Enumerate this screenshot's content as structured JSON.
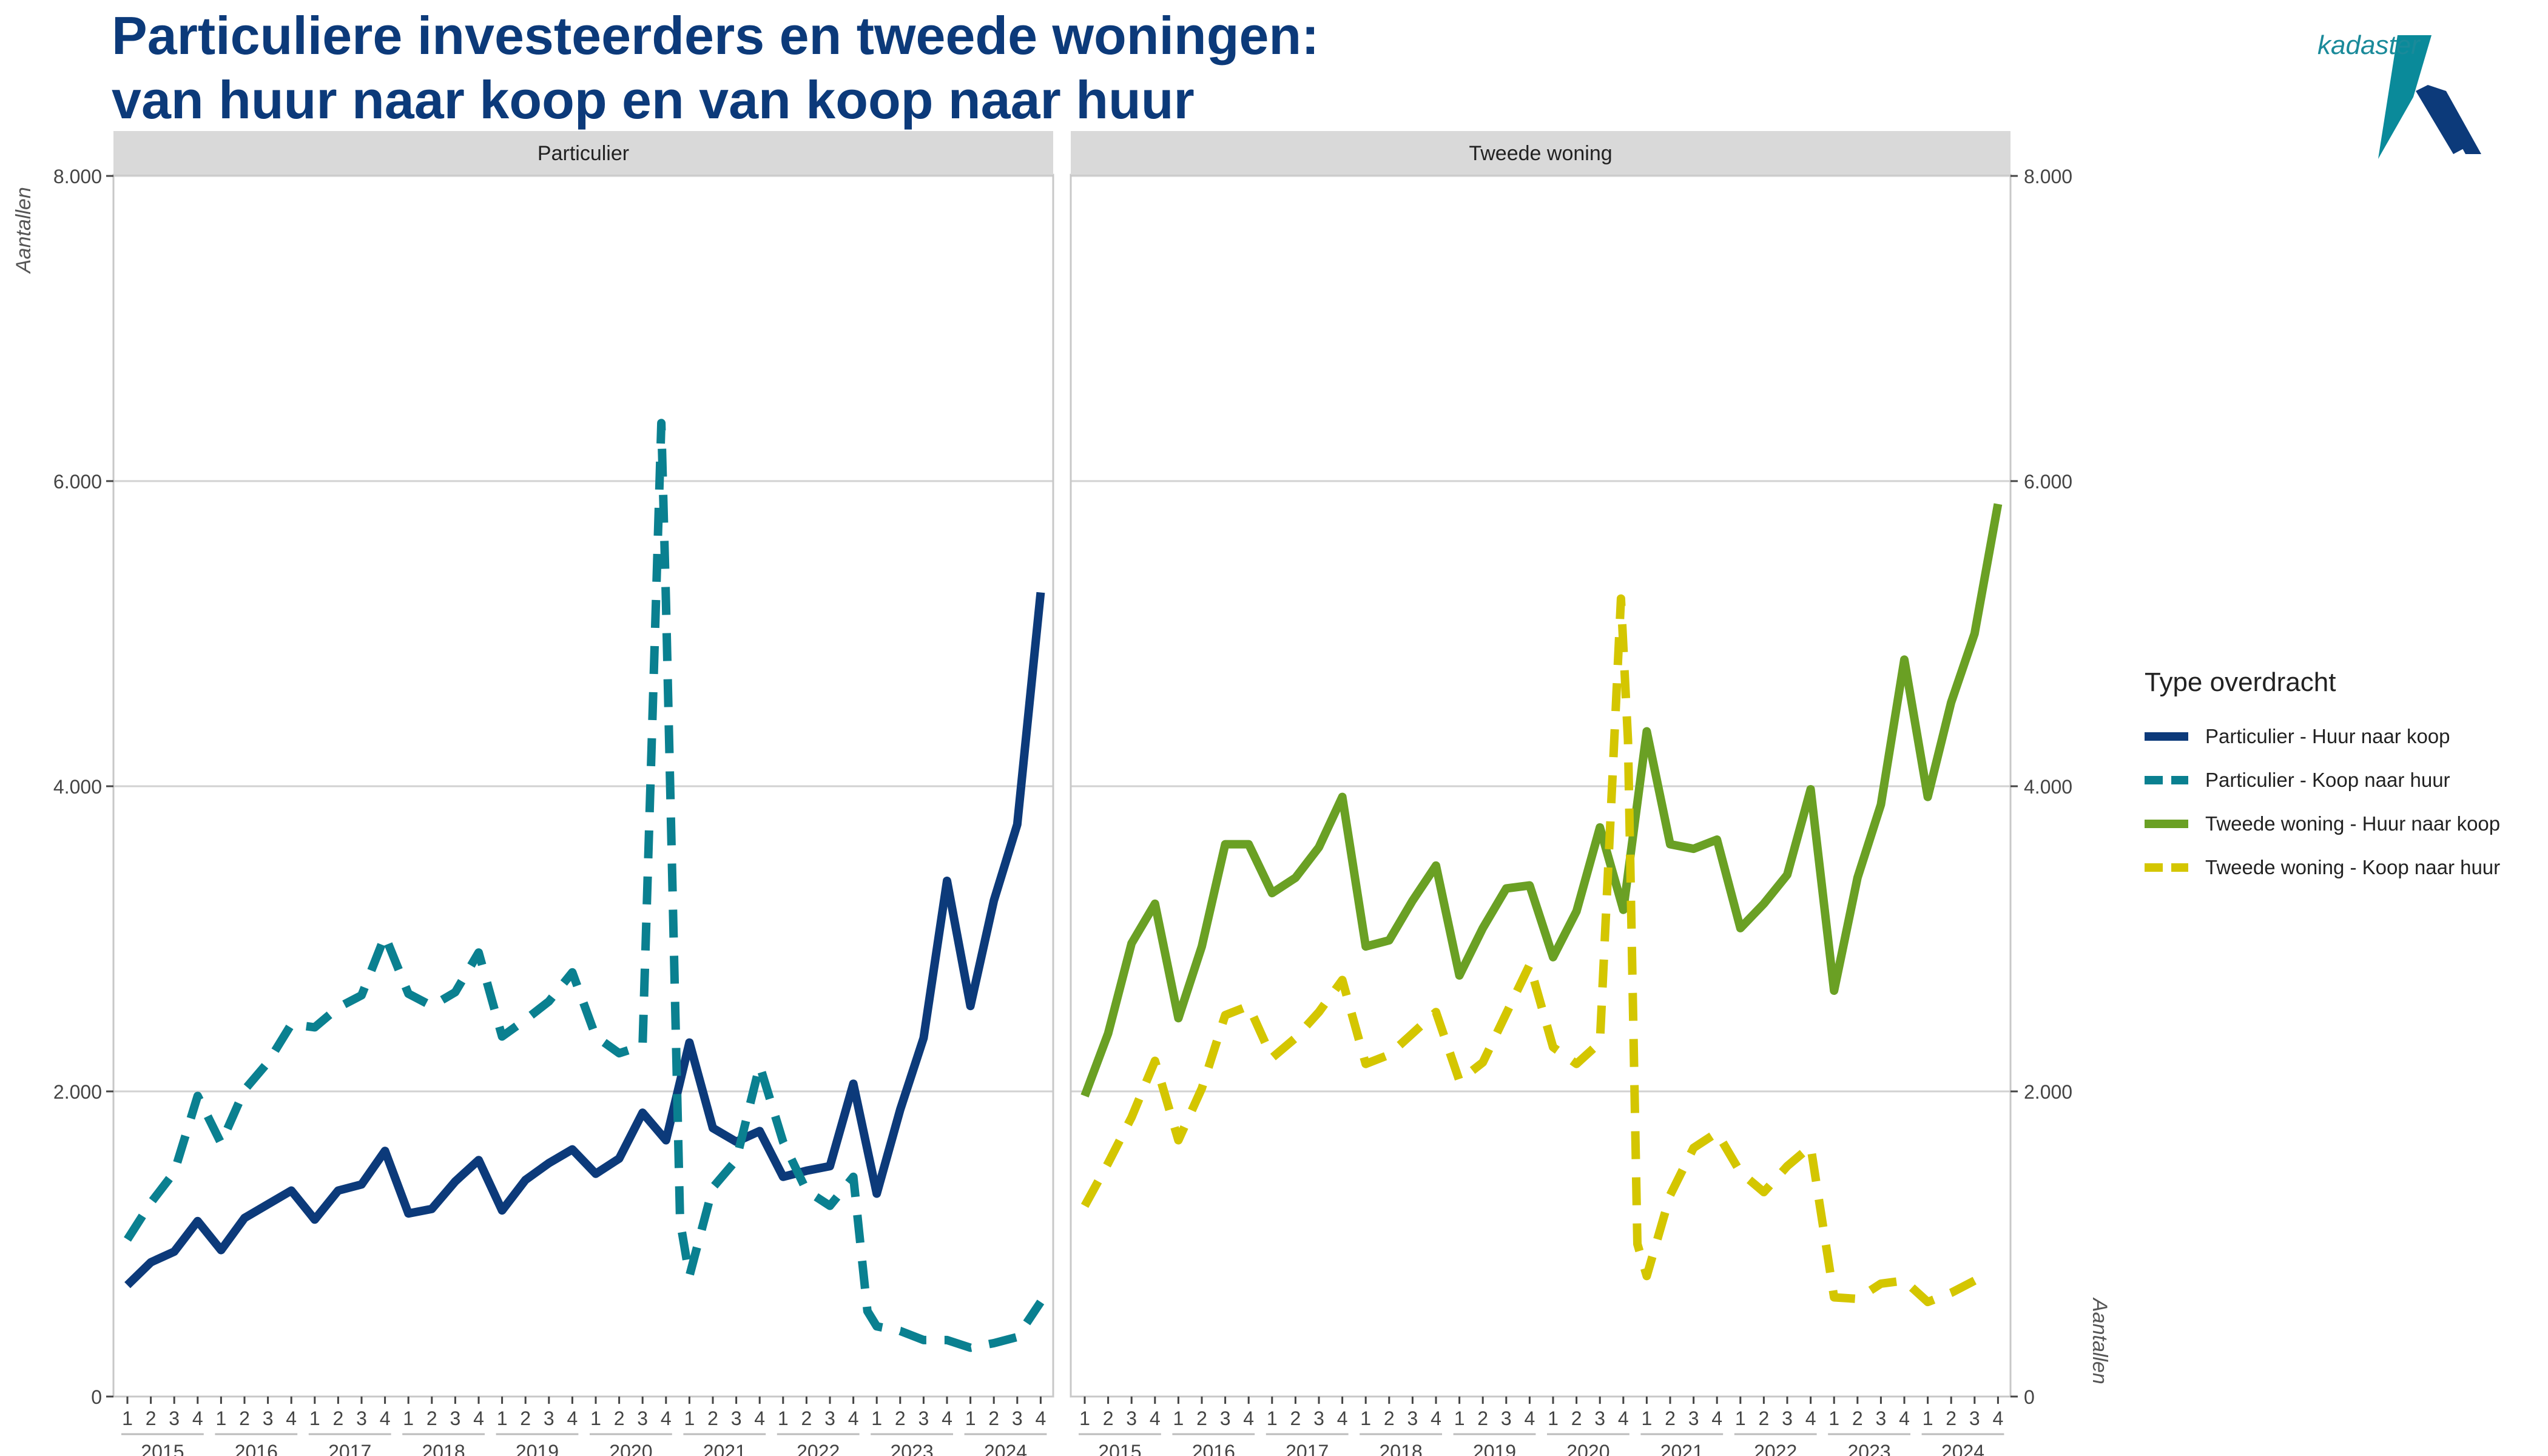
{
  "title": {
    "line1": "Particuliere investeerders en tweede woningen:",
    "line2": "van huur naar koop en van koop naar huur"
  },
  "logo": {
    "text": "kadaster"
  },
  "legend": {
    "title": "Type overdracht",
    "items": [
      {
        "label": "Particulier - Huur naar koop",
        "color": "#0c3a7a",
        "style": "solid"
      },
      {
        "label": "Particulier - Koop naar huur",
        "color": "#0a8090",
        "style": "dashed"
      },
      {
        "label": "Tweede woning - Huur naar koop",
        "color": "#6aa024",
        "style": "solid"
      },
      {
        "label": "Tweede woning - Koop naar huur",
        "color": "#d4c600",
        "style": "dashed"
      }
    ]
  },
  "chart_data": {
    "type": "line",
    "ylabel": "Aantallen",
    "ylim": [
      0,
      8000
    ],
    "yticks": [
      0,
      2000,
      4000,
      6000,
      8000
    ],
    "ytick_labels": [
      "0",
      "2.000",
      "4.000",
      "6.000",
      "8.000"
    ],
    "quarters": [
      "1",
      "2",
      "3",
      "4"
    ],
    "years": [
      "2015",
      "2016",
      "2017",
      "2018",
      "2019",
      "2020",
      "2021",
      "2022",
      "2023",
      "2024"
    ],
    "panels": [
      {
        "label": "Particulier",
        "series": [
          {
            "name": "Particulier - Huur naar koop",
            "style": "solid",
            "color": "#0c3a7a",
            "points": [
              [
                0,
                730
              ],
              [
                1,
                880
              ],
              [
                2,
                950
              ],
              [
                3,
                1150
              ],
              [
                4,
                960
              ],
              [
                5,
                1170
              ],
              [
                6,
                1260
              ],
              [
                7,
                1350
              ],
              [
                8,
                1160
              ],
              [
                9,
                1350
              ],
              [
                10,
                1390
              ],
              [
                11,
                1610
              ],
              [
                12,
                1200
              ],
              [
                13,
                1230
              ],
              [
                14,
                1410
              ],
              [
                15,
                1550
              ],
              [
                16,
                1220
              ],
              [
                17,
                1420
              ],
              [
                18,
                1530
              ],
              [
                19,
                1620
              ],
              [
                20,
                1460
              ],
              [
                21,
                1560
              ],
              [
                22,
                1860
              ],
              [
                23,
                1680
              ],
              [
                24,
                2320
              ],
              [
                25,
                1760
              ],
              [
                26,
                1670
              ],
              [
                27,
                1740
              ],
              [
                28,
                1440
              ],
              [
                29,
                1480
              ],
              [
                30,
                1510
              ],
              [
                31,
                2050
              ],
              [
                32,
                1330
              ],
              [
                33,
                1880
              ],
              [
                34,
                2350
              ],
              [
                35,
                3380
              ],
              [
                36,
                2560
              ],
              [
                37,
                3250
              ],
              [
                38,
                3750
              ],
              [
                39,
                5270
              ]
            ]
          },
          {
            "name": "Particulier - Koop naar huur",
            "style": "dashed",
            "color": "#0a8090",
            "points": [
              [
                0,
                1030
              ],
              [
                1,
                1270
              ],
              [
                2,
                1470
              ],
              [
                3,
                1970
              ],
              [
                4,
                1660
              ],
              [
                5,
                2010
              ],
              [
                6,
                2190
              ],
              [
                7,
                2440
              ],
              [
                8,
                2420
              ],
              [
                9,
                2550
              ],
              [
                10,
                2630
              ],
              [
                11,
                3020
              ],
              [
                12,
                2640
              ],
              [
                13,
                2560
              ],
              [
                14,
                2650
              ],
              [
                15,
                2910
              ],
              [
                16,
                2360
              ],
              [
                17,
                2470
              ],
              [
                18,
                2590
              ],
              [
                19,
                2780
              ],
              [
                20,
                2360
              ],
              [
                21,
                2250
              ],
              [
                22,
                2300
              ],
              [
                22.8,
                6380
              ],
              [
                23,
                5200
              ],
              [
                23.6,
                1150
              ],
              [
                24,
                790
              ],
              [
                25,
                1370
              ],
              [
                26,
                1550
              ],
              [
                27,
                2170
              ],
              [
                28,
                1670
              ],
              [
                29,
                1350
              ],
              [
                30,
                1250
              ],
              [
                31,
                1440
              ],
              [
                31.6,
                560
              ],
              [
                32,
                460
              ],
              [
                33,
                430
              ],
              [
                34,
                370
              ],
              [
                35,
                370
              ],
              [
                36,
                320
              ],
              [
                37,
                350
              ],
              [
                38,
                390
              ],
              [
                39,
                620
              ]
            ]
          }
        ]
      },
      {
        "label": "Tweede woning",
        "series": [
          {
            "name": "Tweede woning - Huur naar koop",
            "style": "solid",
            "color": "#6aa024",
            "points": [
              [
                0,
                1970
              ],
              [
                1,
                2380
              ],
              [
                2,
                2970
              ],
              [
                3,
                3230
              ],
              [
                4,
                2480
              ],
              [
                5,
                2950
              ],
              [
                6,
                3620
              ],
              [
                7,
                3620
              ],
              [
                8,
                3300
              ],
              [
                9,
                3400
              ],
              [
                10,
                3600
              ],
              [
                11,
                3930
              ],
              [
                12,
                2950
              ],
              [
                13,
                2990
              ],
              [
                14,
                3250
              ],
              [
                15,
                3480
              ],
              [
                16,
                2760
              ],
              [
                17,
                3070
              ],
              [
                18,
                3330
              ],
              [
                19,
                3350
              ],
              [
                20,
                2880
              ],
              [
                21,
                3180
              ],
              [
                22,
                3730
              ],
              [
                23,
                3190
              ],
              [
                24,
                4360
              ],
              [
                25,
                3620
              ],
              [
                26,
                3590
              ],
              [
                27,
                3650
              ],
              [
                28,
                3070
              ],
              [
                29,
                3230
              ],
              [
                30,
                3420
              ],
              [
                31,
                3980
              ],
              [
                32,
                2660
              ],
              [
                33,
                3400
              ],
              [
                34,
                3880
              ],
              [
                35,
                4830
              ],
              [
                36,
                3930
              ],
              [
                37,
                4550
              ],
              [
                38,
                5000
              ],
              [
                39,
                5850
              ]
            ]
          },
          {
            "name": "Tweede woning - Koop naar huur",
            "style": "dashed",
            "color": "#d4c600",
            "points": [
              [
                0,
                1250
              ],
              [
                1,
                1530
              ],
              [
                2,
                1830
              ],
              [
                3,
                2200
              ],
              [
                4,
                1680
              ],
              [
                5,
                2020
              ],
              [
                6,
                2500
              ],
              [
                7,
                2560
              ],
              [
                8,
                2220
              ],
              [
                9,
                2350
              ],
              [
                10,
                2520
              ],
              [
                11,
                2730
              ],
              [
                12,
                2180
              ],
              [
                13,
                2240
              ],
              [
                14,
                2380
              ],
              [
                15,
                2520
              ],
              [
                16,
                2070
              ],
              [
                17,
                2190
              ],
              [
                18,
                2510
              ],
              [
                19,
                2830
              ],
              [
                20,
                2290
              ],
              [
                21,
                2180
              ],
              [
                22,
                2320
              ],
              [
                22.9,
                5230
              ],
              [
                23.2,
                4300
              ],
              [
                23.6,
                1000
              ],
              [
                24,
                790
              ],
              [
                25,
                1320
              ],
              [
                26,
                1630
              ],
              [
                27,
                1730
              ],
              [
                28,
                1470
              ],
              [
                29,
                1340
              ],
              [
                30,
                1510
              ],
              [
                31,
                1640
              ],
              [
                32,
                650
              ],
              [
                33,
                640
              ],
              [
                34,
                740
              ],
              [
                35,
                760
              ],
              [
                36,
                620
              ],
              [
                37,
                680
              ],
              [
                38,
                760
              ]
            ]
          }
        ]
      }
    ]
  }
}
